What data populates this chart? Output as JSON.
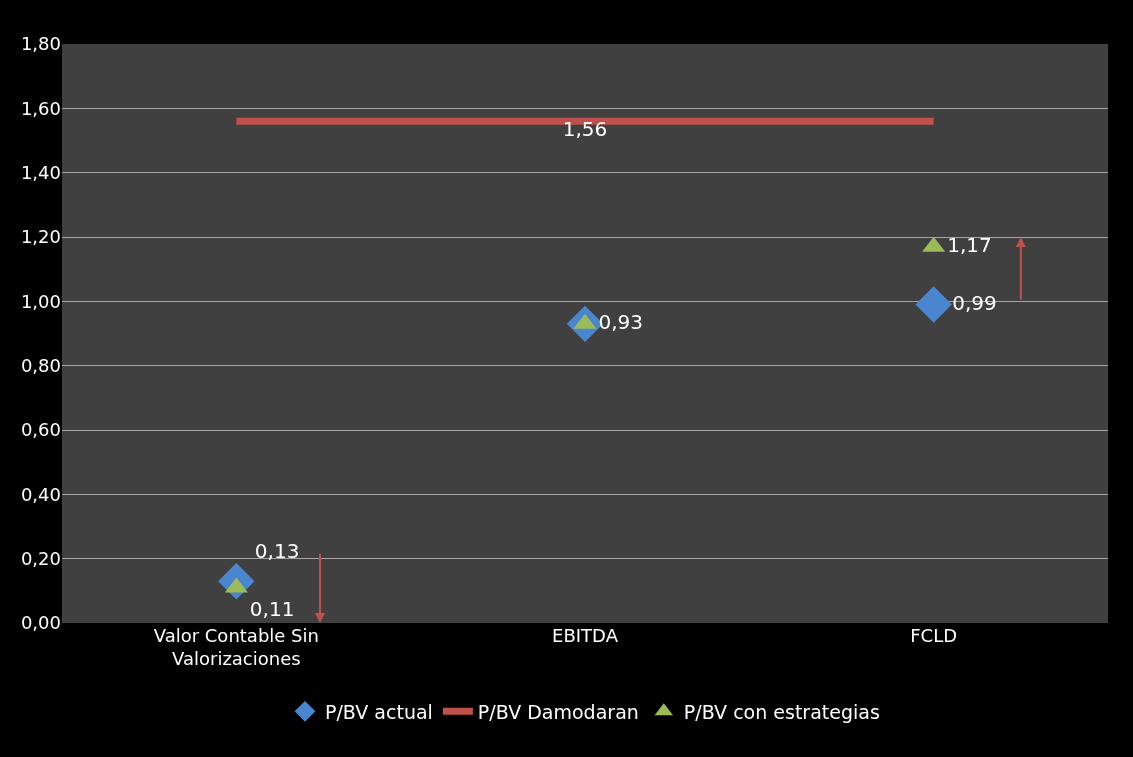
{
  "chart_data": {
    "type": "scatter",
    "categories": [
      "Valor Contable Sin Valorizaciones",
      "EBITDA",
      "FCLD"
    ],
    "series": [
      {
        "name": "P/BV actual",
        "color": "#4a86d0",
        "marker": "diamond",
        "values": [
          0.13,
          0.93,
          0.99
        ],
        "value_labels": [
          "0,13",
          null,
          "0,99"
        ]
      },
      {
        "name": "P/BV Damodaran",
        "type": "line",
        "color": "#c0504d",
        "marker": "none",
        "values": [
          1.56,
          1.56,
          1.56
        ],
        "value_labels": [
          null,
          "1,56",
          null
        ]
      },
      {
        "name": "P/BV con estrategias",
        "color": "#9bbb59",
        "marker": "triangle",
        "values": [
          0.11,
          0.93,
          1.17
        ],
        "value_labels": [
          "0,11",
          "0,93",
          "1,17"
        ]
      }
    ],
    "ylim": [
      0,
      1.8
    ],
    "yticks": [
      {
        "value": 0,
        "label": "0,00"
      },
      {
        "value": 0.2,
        "label": "0,20"
      },
      {
        "value": 0.4,
        "label": "0,40"
      },
      {
        "value": 0.6,
        "label": "0,60"
      },
      {
        "value": 0.8,
        "label": "0,80"
      },
      {
        "value": 1,
        "label": "1,00"
      },
      {
        "value": 1.2,
        "label": "1,20"
      },
      {
        "value": 1.4,
        "label": "1,40"
      },
      {
        "value": 1.6,
        "label": "1,60"
      },
      {
        "value": 1.8,
        "label": "1,80"
      }
    ],
    "grid": "y",
    "legend": "bottom"
  }
}
